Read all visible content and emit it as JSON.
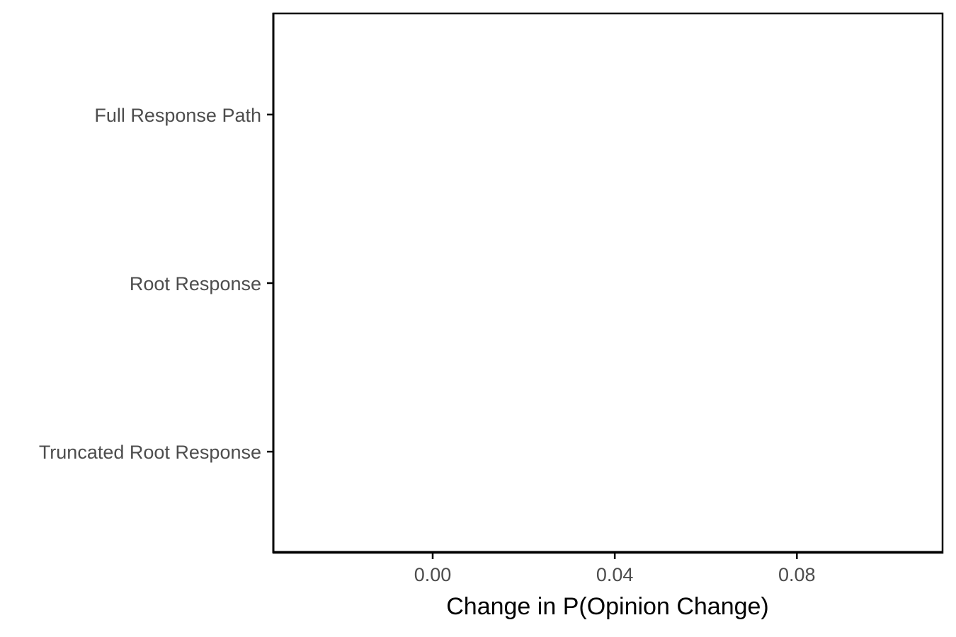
{
  "chart_data": {
    "type": "scatter",
    "title": "",
    "xlabel": "Change in P(Opinion Change)",
    "ylabel": "",
    "categories": [
      "Full Response Path",
      "Root Response",
      "Truncated Root Response"
    ],
    "x_ticks": [
      0.0,
      0.04,
      0.08
    ],
    "x_tick_labels": [
      "0.00",
      "0.04",
      "0.08"
    ],
    "xlim": [
      -0.035,
      0.112
    ],
    "grid": false,
    "legend": "none",
    "series": [],
    "colors": {
      "axis": "#000000",
      "tick_text": "#4d4d4d",
      "title_text": "#000000",
      "background": "#ffffff"
    }
  }
}
